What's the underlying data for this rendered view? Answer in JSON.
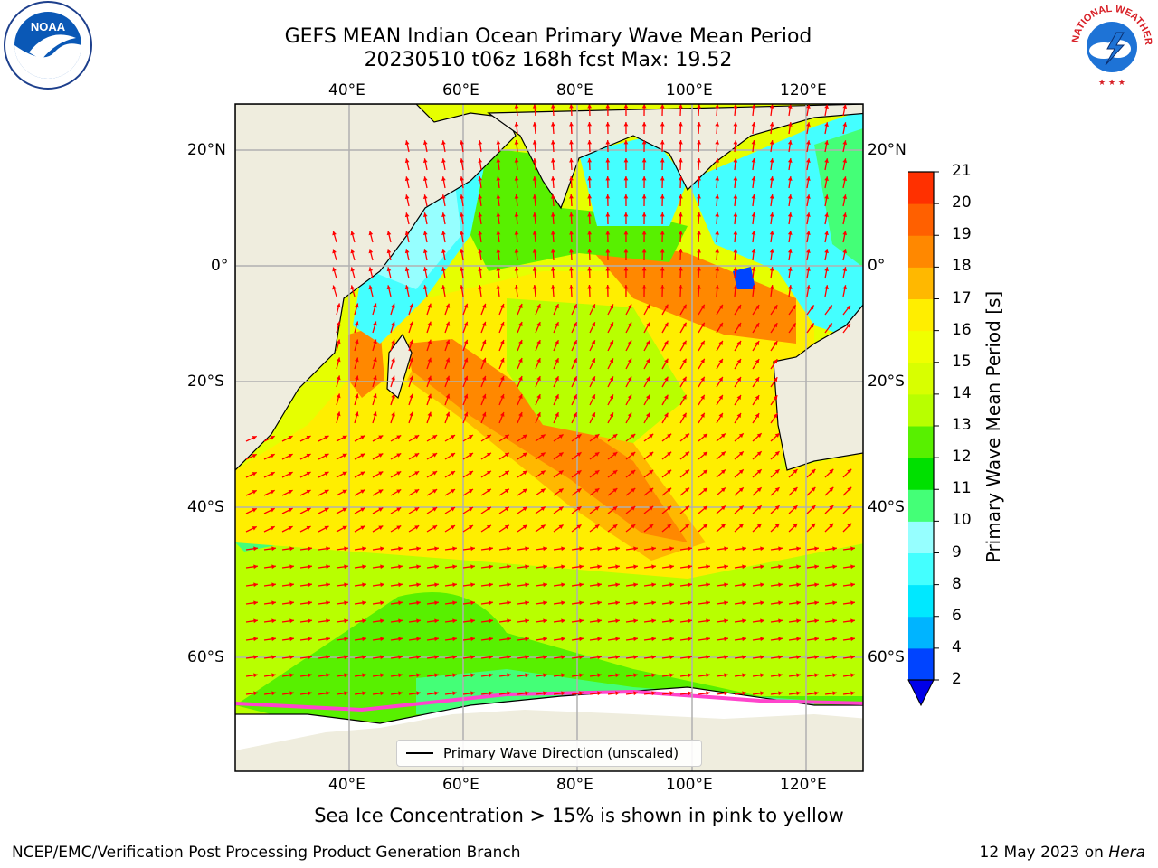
{
  "title": {
    "line1": "GEFS MEAN Indian Ocean Primary Wave Mean Period",
    "line2": "20230510 t06z 168h fcst   Max: 19.52"
  },
  "map": {
    "lon_ticks": [
      "40°E",
      "60°E",
      "80°E",
      "100°E",
      "120°E"
    ],
    "lat_ticks": [
      "20°N",
      "0°",
      "20°S",
      "40°S",
      "60°S"
    ],
    "legend": "Primary Wave Direction (unscaled)",
    "colors": {
      "land": "#efedde",
      "ice": "#ffffff",
      "arrows": "#ff0000",
      "grid": "#b0b0b0"
    }
  },
  "colorbar": {
    "label": "Primary Wave Mean Period [s]",
    "levels": [
      "2",
      "4",
      "6",
      "8",
      "9",
      "10",
      "11",
      "12",
      "13",
      "14",
      "15",
      "16",
      "17",
      "18",
      "19",
      "20",
      "21"
    ],
    "colors": [
      "#0044ff",
      "#00b4ff",
      "#00e8ff",
      "#44ffff",
      "#96ffff",
      "#44ff77",
      "#00e000",
      "#58f000",
      "#b8ff00",
      "#d8ff00",
      "#f0ff00",
      "#ffee00",
      "#ffb800",
      "#ff8800",
      "#ff6000",
      "#ff3000",
      "#ff0000"
    ],
    "extend_color": "#0000e8"
  },
  "notes": {
    "ice": "Sea Ice Concentration > 15% is shown in pink to yellow"
  },
  "footer": {
    "left": "NCEP/EMC/Verification Post Processing Product Generation Branch",
    "right_date": "12 May 2023 on ",
    "right_host": "Hera"
  },
  "logos": {
    "noaa": "NOAA",
    "nws": "NATIONAL WEATHER SERVICE"
  }
}
